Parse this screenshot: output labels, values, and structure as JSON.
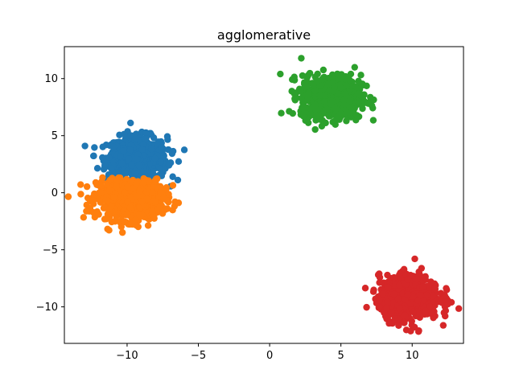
{
  "chart_data": {
    "type": "scatter",
    "title": "agglomerative",
    "xlabel": "",
    "ylabel": "",
    "xlim": [
      -14.4,
      13.6
    ],
    "ylim": [
      -13.2,
      12.8
    ],
    "xticks": [
      -10,
      -5,
      0,
      5,
      10
    ],
    "xtick_labels": [
      "−10",
      "−5",
      "0",
      "5",
      "10"
    ],
    "yticks": [
      -10,
      -5,
      0,
      5,
      10
    ],
    "ytick_labels": [
      "−10",
      "−5",
      "0",
      "5",
      "10"
    ],
    "grid": false,
    "legend": "none",
    "clusters": [
      {
        "color": "#1f77b4",
        "center": [
          -9.3,
          3.0
        ],
        "spread": [
          1.05,
          0.95
        ],
        "n": 700,
        "clip": "y>0.6"
      },
      {
        "color": "#ff7f0e",
        "center": [
          -9.8,
          -0.5
        ],
        "spread": [
          1.15,
          0.95
        ],
        "n": 700,
        "clip": "y<1.4"
      },
      {
        "color": "#2ca02c",
        "center": [
          4.3,
          8.4
        ],
        "spread": [
          1.05,
          0.95
        ],
        "n": 700,
        "clip": "none"
      },
      {
        "color": "#d62728",
        "center": [
          9.8,
          -9.2
        ],
        "spread": [
          1.05,
          0.95
        ],
        "n": 700,
        "clip": "none"
      }
    ]
  }
}
